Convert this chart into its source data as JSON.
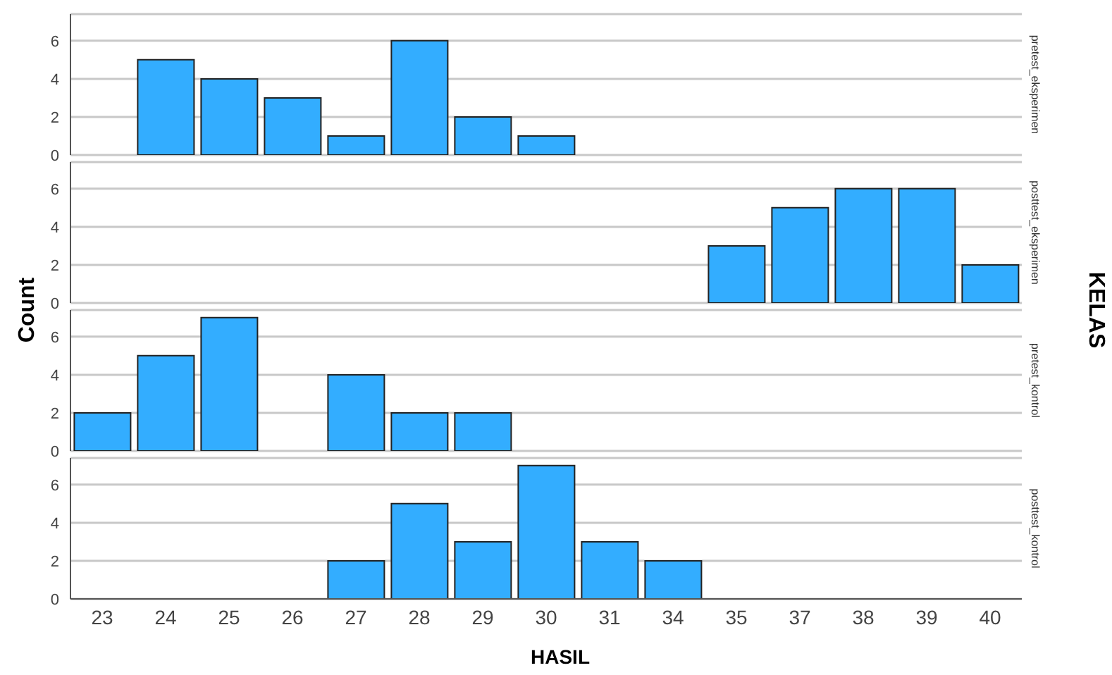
{
  "chart_data": [
    {
      "type": "bar",
      "y2label": "pretest_eksperimen",
      "ylabel": "Count",
      "legend_title": "KELAS",
      "categories": [
        "23",
        "24",
        "25",
        "26",
        "27",
        "28",
        "29",
        "30",
        "31",
        "34",
        "35",
        "37",
        "38",
        "39",
        "40"
      ],
      "series": [
        {
          "color": "#33adff",
          "values": [
            0,
            5,
            4,
            3,
            1,
            6,
            2,
            1,
            0,
            0,
            0,
            0,
            0,
            0,
            0
          ]
        }
      ],
      "ylim": [
        0,
        7.4
      ],
      "yticks": [
        0,
        2,
        4,
        6
      ],
      "grid": "y",
      "legend": false,
      "tick_labels": "y"
    },
    {
      "type": "bar",
      "y2label": "posttest_eksperimen",
      "categories": [
        "23",
        "24",
        "25",
        "26",
        "27",
        "28",
        "29",
        "30",
        "31",
        "34",
        "35",
        "37",
        "38",
        "39",
        "40"
      ],
      "series": [
        {
          "color": "#33adff",
          "values": [
            0,
            0,
            0,
            0,
            0,
            0,
            0,
            0,
            0,
            0,
            3,
            5,
            6,
            6,
            2
          ]
        }
      ],
      "ylim": [
        0,
        7.4
      ],
      "yticks": [
        0,
        2,
        4,
        6
      ],
      "grid": "y",
      "legend": false,
      "tick_labels": "y"
    },
    {
      "type": "bar",
      "y2label": "pretest_kontrol",
      "categories": [
        "23",
        "24",
        "25",
        "26",
        "27",
        "28",
        "29",
        "30",
        "31",
        "34",
        "35",
        "37",
        "38",
        "39",
        "40"
      ],
      "series": [
        {
          "color": "#33adff",
          "values": [
            2,
            5,
            7,
            0,
            4,
            2,
            2,
            0,
            0,
            0,
            0,
            0,
            0,
            0,
            0
          ]
        }
      ],
      "ylim": [
        0,
        7.4
      ],
      "yticks": [
        0,
        2,
        4,
        6
      ],
      "grid": "y",
      "legend": false,
      "tick_labels": "y"
    },
    {
      "type": "bar",
      "y2label": "posttest_kontrol",
      "xlabel": "HASIL",
      "categories": [
        "23",
        "24",
        "25",
        "26",
        "27",
        "28",
        "29",
        "30",
        "31",
        "34",
        "35",
        "37",
        "38",
        "39",
        "40"
      ],
      "series": [
        {
          "color": "#33adff",
          "values": [
            0,
            0,
            0,
            0,
            2,
            5,
            3,
            7,
            3,
            2,
            0,
            0,
            0,
            0,
            0
          ]
        }
      ],
      "ylim": [
        0,
        7.4
      ],
      "yticks": [
        0,
        2,
        4,
        6
      ],
      "grid": "y",
      "legend": false
    }
  ]
}
